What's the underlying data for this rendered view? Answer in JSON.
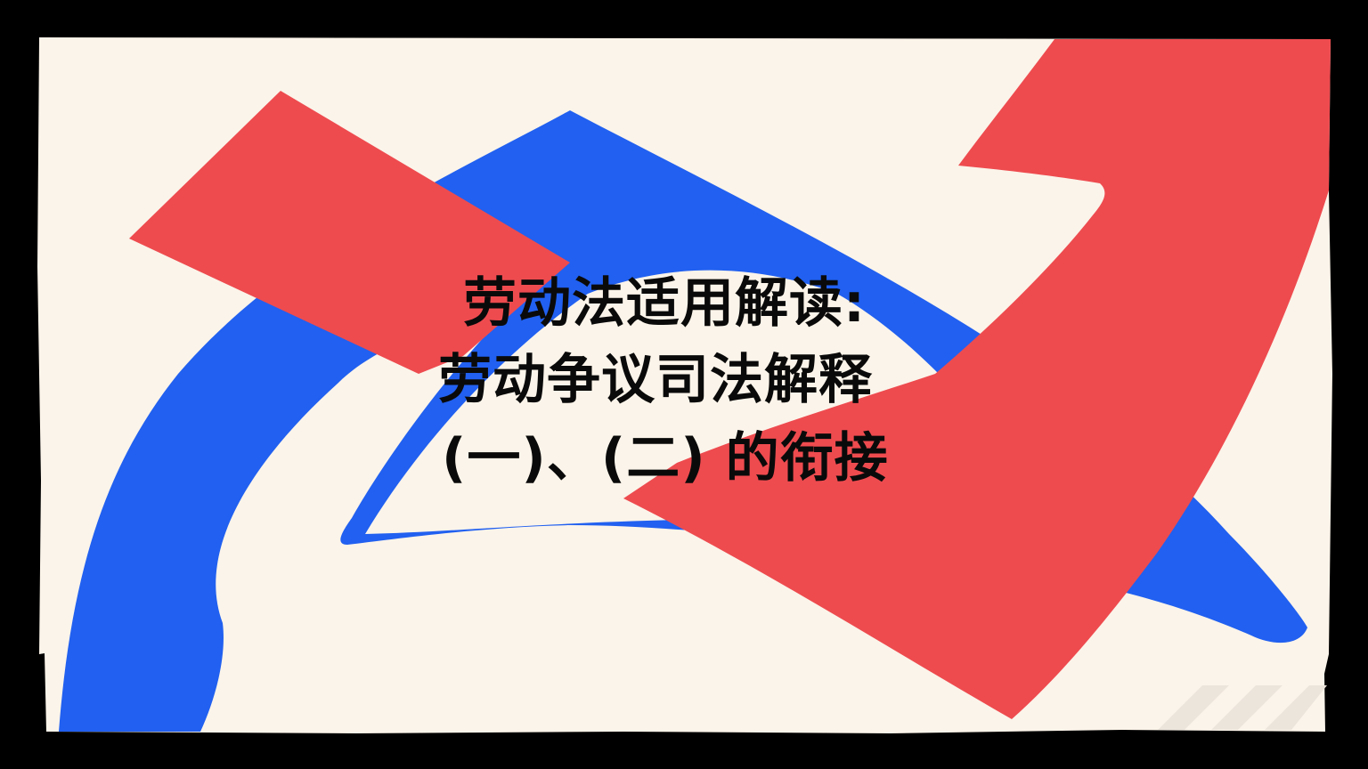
{
  "slide": {
    "title_lines": [
      "劳动法适用解读:",
      "劳动争议司法解释",
      "(一)、(二) 的衔接"
    ]
  },
  "colors": {
    "frame": "#000000",
    "background": "#fbf4ea",
    "accent_red": "#ee4b4f",
    "accent_blue": "#2160f0",
    "text": "#0a0a0a"
  },
  "icons": [
    "red-ribbon-shape",
    "blue-ribbon-shape",
    "corner-stripes"
  ]
}
